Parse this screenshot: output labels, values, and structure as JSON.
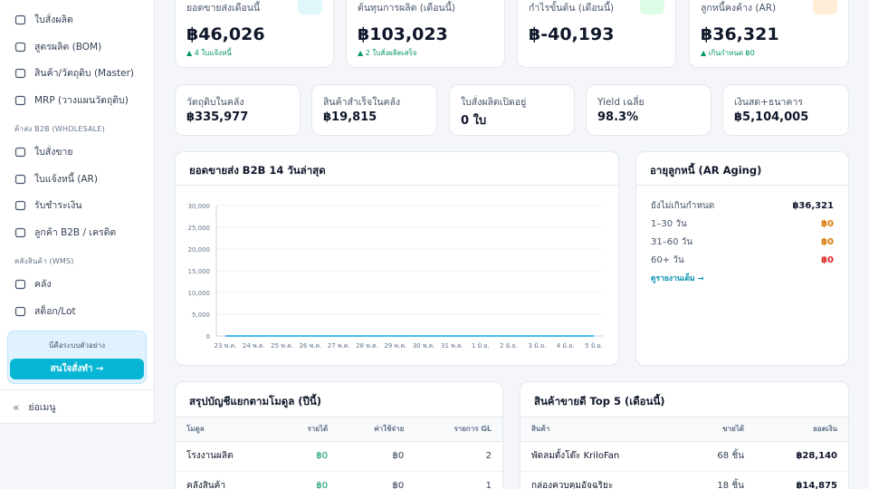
{
  "sidebar": {
    "groups": [
      {
        "items": [
          "ใบสั่งผลิต",
          "สูตรผลิต (BOM)",
          "สินค้า/วัตถุดิบ (Master)",
          "MRP (วางแผนวัตถุดิบ)"
        ]
      },
      {
        "title": "ค้าส่ง B2B (WHOLESALE)",
        "items": [
          "ใบสั่งขาย",
          "ใบแจ้งหนี้ (AR)",
          "รับชำระเงิน",
          "ลูกค้า B2B / เครดิต"
        ]
      },
      {
        "title": "คลังสินค้า (WMS)",
        "items": [
          "คลัง",
          "สต็อก/Lot"
        ]
      }
    ],
    "demo": {
      "text": "นี่คือระบบตัวอย่าง",
      "button": "สนใจสั่งทำ →"
    },
    "collapse": "ย่อเมนู"
  },
  "kpis": [
    {
      "label": "ยอดขายส่งเดือนนี้",
      "value": "฿46,026",
      "note": "▲ 4 ใบแจ้งหนี้"
    },
    {
      "label": "ต้นทุนการผลิต (เดือนนี้)",
      "value": "฿103,023",
      "note": "▲ 2 ใบสั่งผลิตเสร็จ"
    },
    {
      "label": "กำไรขั้นต้น (เดือนนี้)",
      "value": "฿-40,193"
    },
    {
      "label": "ลูกหนี้คงค้าง (AR)",
      "value": "฿36,321",
      "note": "▲ เกินกำหนด ฿0"
    }
  ],
  "stats": [
    {
      "label": "วัตถุดิบในคลัง",
      "value": "฿335,977"
    },
    {
      "label": "สินค้าสำเร็จในคลัง",
      "value": "฿19,815"
    },
    {
      "label": "ใบสั่งผลิตเปิดอยู่",
      "value": "0 ใบ"
    },
    {
      "label": "Yield เฉลี่ย",
      "value": "98.3%"
    },
    {
      "label": "เงินสด+ธนาคาร",
      "value": "฿5,104,005"
    }
  ],
  "chart_data": {
    "type": "line",
    "title": "ยอดขายส่ง B2B 14 วันล่าสุด",
    "categories": [
      "23 พ.ค.",
      "24 พ.ค.",
      "25 พ.ค.",
      "26 พ.ค.",
      "27 พ.ค.",
      "28 พ.ค.",
      "29 พ.ค.",
      "30 พ.ค.",
      "31 พ.ค.",
      "1 มิ.ย.",
      "2 มิ.ย.",
      "3 มิ.ย.",
      "4 มิ.ย.",
      "5 มิ.ย."
    ],
    "values": [
      0,
      0,
      0,
      0,
      0,
      0,
      0,
      0,
      0,
      0,
      0,
      0,
      0,
      0
    ],
    "color": "#0ea5e9",
    "ylim": [
      0,
      30000
    ],
    "yticks": [
      0,
      {
        "value": 5000,
        "label": "5,000"
      },
      {
        "value": 10000,
        "label": "10,000"
      },
      {
        "value": 15000,
        "label": "15,000"
      },
      {
        "value": 20000,
        "label": "20,000"
      },
      {
        "value": 25000,
        "label": "25,000"
      },
      {
        "value": 30000,
        "label": "30,000"
      }
    ],
    "grid": true
  },
  "aging": {
    "title": "อายุลูกหนี้ (AR Aging)",
    "rows": [
      [
        "ยังไม่เกินกำหนด",
        "฿36,321"
      ],
      [
        "1–30 วัน",
        "฿0"
      ],
      [
        "31–60 วัน",
        "฿0"
      ],
      [
        "60+ วัน",
        "฿0"
      ]
    ],
    "link": "ดูรายงานเต็ม →"
  },
  "module_table": {
    "title": "สรุปบัญชีแยกตามโมดูล (ปีนี้)",
    "headers": [
      "โมดูล",
      "รายได้",
      "ค่าใช้จ่าย",
      "รายการ GL"
    ],
    "rows": [
      [
        "โรงงานผลิต",
        "฿0",
        "฿0",
        "2"
      ],
      [
        "คลังสินค้า",
        "฿0",
        "฿0",
        "1"
      ]
    ]
  },
  "top_products": {
    "title": "สินค้าขายดี Top 5 (เดือนนี้)",
    "headers": [
      "สินค้า",
      "ขายได้",
      "ยอดเงิน"
    ],
    "rows": [
      [
        "พัดลมตั้งโต๊ะ KriloFan",
        "68 ชิ้น",
        "฿28,140"
      ],
      [
        "กล่องควบคุมอัจฉริยะ",
        "18 ชิ้น",
        "฿14,875"
      ]
    ]
  }
}
